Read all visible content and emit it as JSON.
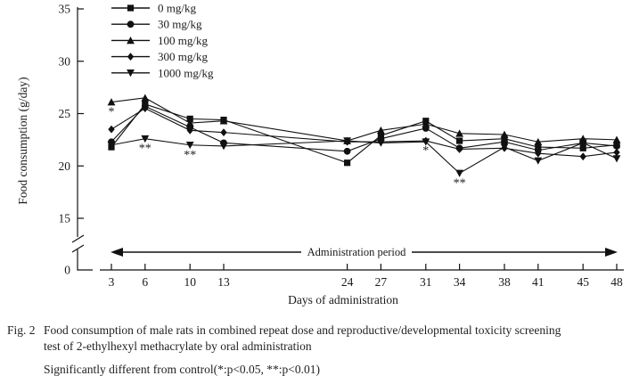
{
  "figure": {
    "fig_label": "Fig. 2",
    "caption_line1": "Food consumption of male rats in combined repeat dose and reproductive/developmental toxicity screening",
    "caption_line2": "test of 2-ethylhexyl methacrylate by oral administration",
    "caption_note": "Significantly different from control(*:p<0.05, **:p<0.01)"
  },
  "chart_data": {
    "type": "line",
    "title": "",
    "xlabel": "Days of administration",
    "ylabel": "Food consumption (g/day)",
    "annotation": "Administration period",
    "x": [
      3,
      6,
      10,
      13,
      24,
      27,
      31,
      34,
      38,
      41,
      45,
      48
    ],
    "y_ticks": [
      0,
      15,
      20,
      25,
      30,
      35
    ],
    "ylim": [
      0,
      35
    ],
    "axis_break_between": [
      0,
      15
    ],
    "grid": false,
    "legend_position": "top-left-inside",
    "series": [
      {
        "name": "0 mg/kg",
        "marker": "square",
        "values": [
          21.8,
          25.9,
          24.5,
          24.4,
          20.3,
          22.9,
          24.3,
          22.4,
          22.6,
          21.8,
          21.7,
          22.0
        ]
      },
      {
        "name": "30 mg/kg",
        "marker": "circle",
        "values": [
          22.3,
          25.7,
          23.7,
          22.2,
          21.4,
          22.6,
          23.6,
          21.7,
          22.3,
          21.5,
          22.2,
          21.9
        ]
      },
      {
        "name": "100 mg/kg",
        "marker": "triangle-up",
        "values": [
          26.1,
          26.5,
          24.1,
          24.3,
          22.4,
          23.4,
          24.0,
          23.1,
          23.0,
          22.3,
          22.6,
          22.5
        ]
      },
      {
        "name": "300 mg/kg",
        "marker": "diamond",
        "values": [
          23.5,
          25.5,
          23.4,
          23.2,
          22.3,
          22.3,
          22.4,
          21.6,
          21.7,
          21.2,
          20.9,
          21.3
        ]
      },
      {
        "name": "1000 mg/kg",
        "marker": "triangle-down",
        "values": [
          22.0,
          22.6,
          22.0,
          21.9,
          22.4,
          22.2,
          22.3,
          19.3,
          21.8,
          20.5,
          22.2,
          20.7
        ]
      }
    ],
    "significance": [
      {
        "day": 3,
        "series": "100 mg/kg",
        "mark": "*"
      },
      {
        "day": 6,
        "series": "1000 mg/kg",
        "mark": "**"
      },
      {
        "day": 10,
        "series": "1000 mg/kg",
        "mark": "**"
      },
      {
        "day": 31,
        "series": "300 mg/kg",
        "mark": "*"
      },
      {
        "day": 34,
        "series": "1000 mg/kg",
        "mark": "**"
      }
    ],
    "colors": {
      "line": "#111111",
      "text": "#1a1a1a",
      "background": "#ffffff"
    }
  }
}
